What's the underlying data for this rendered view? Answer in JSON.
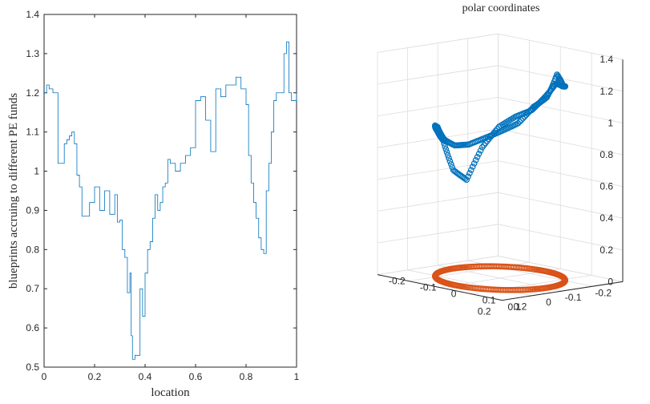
{
  "chart_data": [
    {
      "type": "line",
      "xlabel": "location",
      "ylabel": "blueprints accruing to different PE funds",
      "xlim": [
        0,
        1
      ],
      "ylim": [
        0.5,
        1.4
      ],
      "xticks": [
        0,
        0.2,
        0.4,
        0.6,
        0.8,
        1
      ],
      "xtick_labels": [
        "0",
        "0.2",
        "0.4",
        "0.6",
        "0.8",
        "1"
      ],
      "yticks": [
        0.5,
        0.6,
        0.7,
        0.8,
        0.9,
        1.0,
        1.1,
        1.2,
        1.3,
        1.4
      ],
      "ytick_labels": [
        "0.5",
        "0.6",
        "0.7",
        "0.8",
        "0.9",
        "1",
        "1.1",
        "1.2",
        "1.3",
        "1.4"
      ],
      "line_color": "#0072bd",
      "series": [
        {
          "x": [
            0,
            0.01,
            0.02,
            0.035,
            0.05,
            0.055,
            0.065,
            0.075,
            0.08,
            0.09,
            0.1,
            0.11,
            0.12,
            0.13,
            0.14,
            0.15,
            0.16,
            0.17,
            0.18,
            0.19,
            0.2,
            0.21,
            0.22,
            0.23,
            0.24,
            0.25,
            0.26,
            0.27,
            0.28,
            0.29,
            0.3,
            0.31,
            0.32,
            0.33,
            0.34,
            0.345,
            0.35,
            0.36,
            0.37,
            0.38,
            0.39,
            0.4,
            0.41,
            0.42,
            0.43,
            0.44,
            0.45,
            0.46,
            0.47,
            0.48,
            0.49,
            0.5,
            0.52,
            0.54,
            0.56,
            0.58,
            0.6,
            0.62,
            0.64,
            0.66,
            0.68,
            0.7,
            0.72,
            0.74,
            0.76,
            0.78,
            0.8,
            0.81,
            0.82,
            0.83,
            0.84,
            0.85,
            0.86,
            0.87,
            0.88,
            0.89,
            0.9,
            0.91,
            0.92,
            0.93,
            0.94,
            0.95,
            0.96,
            0.97,
            0.98,
            0.99,
            1.0
          ],
          "y": [
            1.2,
            1.22,
            1.21,
            1.2,
            1.2,
            1.02,
            1.02,
            1.02,
            1.07,
            1.08,
            1.09,
            1.1,
            1.07,
            0.99,
            0.96,
            0.885,
            0.885,
            0.885,
            0.92,
            0.92,
            0.96,
            0.96,
            0.9,
            0.9,
            0.95,
            0.95,
            0.89,
            0.89,
            0.94,
            0.87,
            0.875,
            0.8,
            0.78,
            0.69,
            0.74,
            0.58,
            0.52,
            0.53,
            0.53,
            0.7,
            0.63,
            0.74,
            0.8,
            0.82,
            0.88,
            0.94,
            0.9,
            0.92,
            0.96,
            0.97,
            1.03,
            1.02,
            1.0,
            1.02,
            1.04,
            1.06,
            1.18,
            1.19,
            1.13,
            1.05,
            1.21,
            1.19,
            1.22,
            1.22,
            1.24,
            1.21,
            1.17,
            1.04,
            0.97,
            0.92,
            0.88,
            0.83,
            0.8,
            0.79,
            0.95,
            1.02,
            1.1,
            1.18,
            1.2,
            1.2,
            1.2,
            1.3,
            1.33,
            1.2,
            1.18,
            1.18,
            1.2
          ]
        }
      ]
    },
    {
      "type": "scatter",
      "title": "polar coordinates",
      "xlim": [
        -0.2,
        0.2
      ],
      "ylim": [
        -0.2,
        0.2
      ],
      "zlim": [
        0,
        1.4
      ],
      "xticks": [
        -0.2,
        -0.1,
        0,
        0.1,
        0.2
      ],
      "xtick_labels": [
        "-0.2",
        "-0.1",
        "0",
        "0.1",
        "0.2"
      ],
      "yticks": [
        -0.2,
        -0.1,
        0,
        0.1,
        0.2
      ],
      "ytick_labels": [
        "-0.2",
        "-0.1",
        "0",
        "0.1",
        "0.2"
      ],
      "zticks": [
        0,
        0.2,
        0.4,
        0.6,
        0.8,
        1.0,
        1.2,
        1.4
      ],
      "ztick_labels": [
        "0",
        "0.2",
        "0.4",
        "0.6",
        "0.8",
        "1",
        "1.2",
        "1.4"
      ],
      "grid": true,
      "series": [
        {
          "marker": "circle",
          "color": "#0072bd",
          "theta_deg": [
            0,
            15,
            30,
            45,
            60,
            75,
            90,
            105,
            120,
            135,
            150,
            165,
            180,
            195,
            210,
            225,
            240,
            255,
            270,
            285,
            300,
            315,
            330,
            345,
            360
          ],
          "r": 0.15,
          "z": [
            1.2,
            1.15,
            1.05,
            1.0,
            0.95,
            0.9,
            0.88,
            0.9,
            0.96,
            0.95,
            0.9,
            0.82,
            0.62,
            0.55,
            0.75,
            0.88,
            0.95,
            1.0,
            1.1,
            1.2,
            1.2,
            1.22,
            1.24,
            1.33,
            1.2
          ]
        },
        {
          "marker": "circle",
          "color": "#d95319",
          "theta_deg": "0-360 (full circle)",
          "r": 0.15,
          "z": 0
        }
      ]
    }
  ]
}
